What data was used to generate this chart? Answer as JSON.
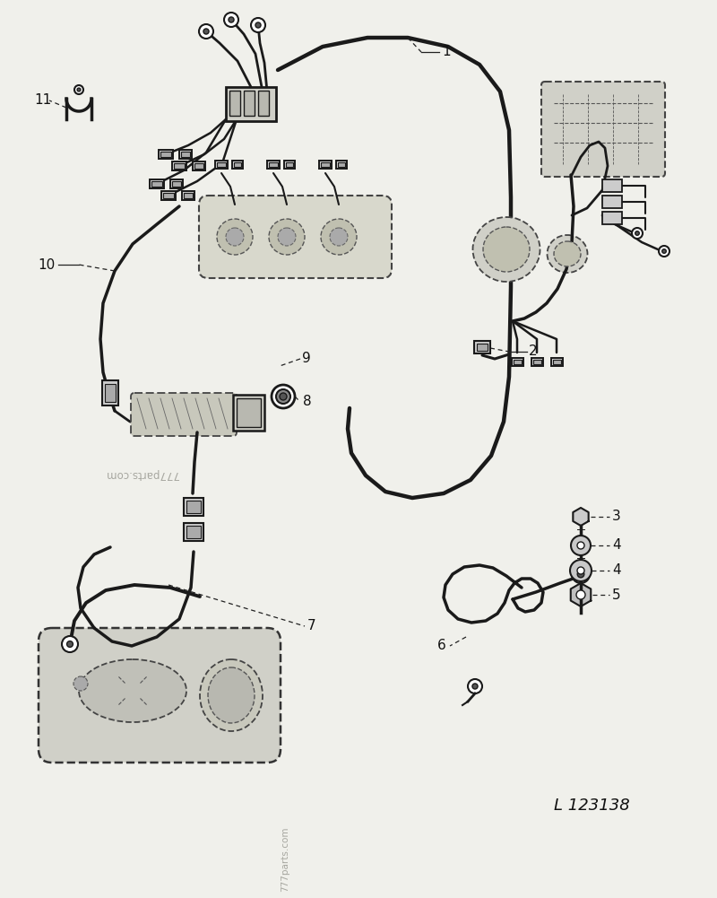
{
  "background_color": "#f0f0eb",
  "line_color": "#1a1a1a",
  "label_color": "#111111",
  "watermark1": "777parts.com",
  "watermark2": "777parts.com",
  "diagram_id": "L 123138"
}
